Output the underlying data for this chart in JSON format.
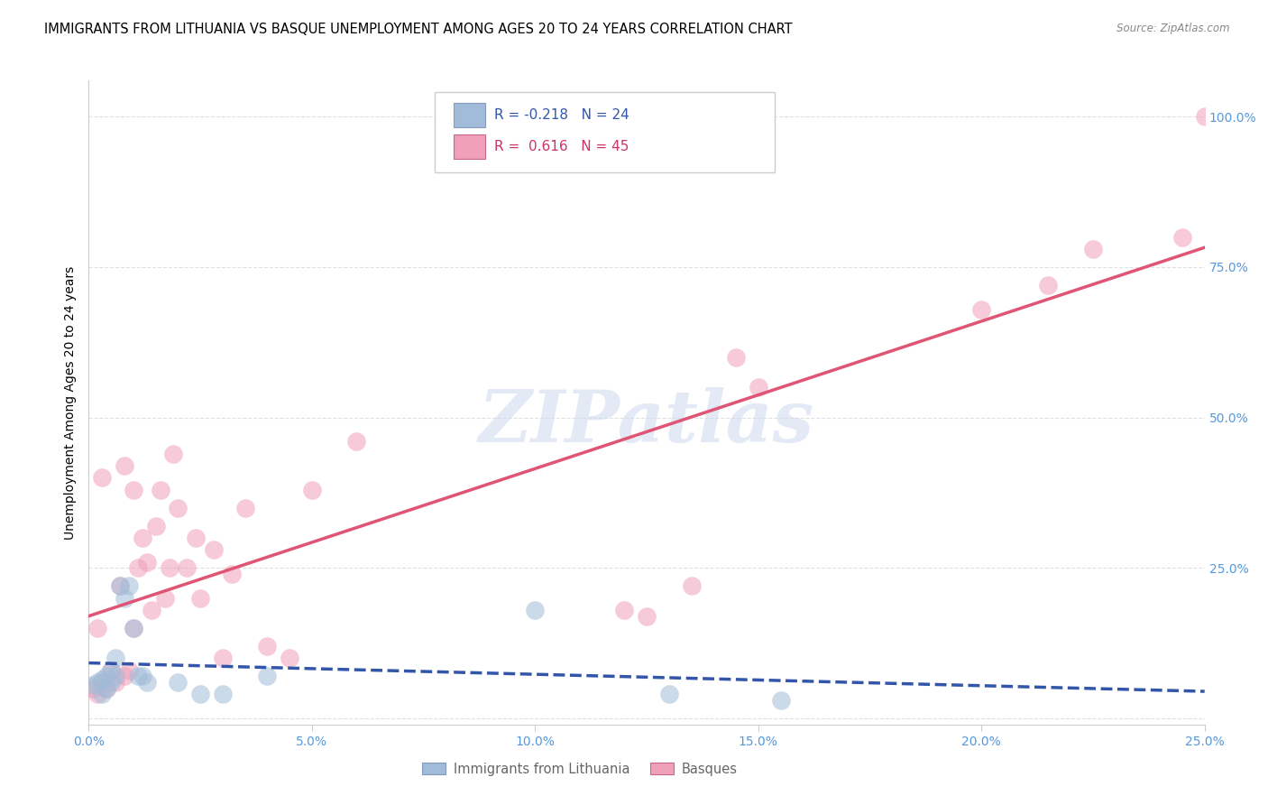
{
  "title": "IMMIGRANTS FROM LITHUANIA VS BASQUE UNEMPLOYMENT AMONG AGES 20 TO 24 YEARS CORRELATION CHART",
  "source": "Source: ZipAtlas.com",
  "ylabel": "Unemployment Among Ages 20 to 24 years",
  "xlim": [
    0.0,
    0.25
  ],
  "ylim": [
    -0.01,
    1.06
  ],
  "xticks": [
    0.0,
    0.05,
    0.1,
    0.15,
    0.2,
    0.25
  ],
  "yticks": [
    0.0,
    0.25,
    0.5,
    0.75,
    1.0
  ],
  "xtick_labels": [
    "0.0%",
    "5.0%",
    "10.0%",
    "15.0%",
    "20.0%",
    "25.0%"
  ],
  "ytick_labels": [
    "",
    "25.0%",
    "50.0%",
    "75.0%",
    "100.0%"
  ],
  "legend_R_lit": "-0.218",
  "legend_N_lit": "24",
  "legend_R_bas": "0.616",
  "legend_N_bas": "45",
  "lithuania_x": [
    0.001,
    0.002,
    0.003,
    0.003,
    0.004,
    0.004,
    0.005,
    0.005,
    0.006,
    0.006,
    0.007,
    0.008,
    0.009,
    0.01,
    0.011,
    0.012,
    0.013,
    0.02,
    0.025,
    0.03,
    0.04,
    0.1,
    0.13,
    0.155
  ],
  "lithuania_y": [
    0.055,
    0.06,
    0.065,
    0.04,
    0.07,
    0.05,
    0.06,
    0.08,
    0.07,
    0.1,
    0.22,
    0.2,
    0.22,
    0.15,
    0.07,
    0.07,
    0.06,
    0.06,
    0.04,
    0.04,
    0.07,
    0.18,
    0.04,
    0.03
  ],
  "basque_x": [
    0.001,
    0.002,
    0.002,
    0.003,
    0.003,
    0.004,
    0.005,
    0.006,
    0.007,
    0.008,
    0.008,
    0.009,
    0.01,
    0.01,
    0.011,
    0.012,
    0.013,
    0.014,
    0.015,
    0.016,
    0.017,
    0.018,
    0.019,
    0.02,
    0.022,
    0.024,
    0.025,
    0.028,
    0.03,
    0.032,
    0.035,
    0.04,
    0.045,
    0.05,
    0.06,
    0.12,
    0.125,
    0.135,
    0.145,
    0.15,
    0.2,
    0.215,
    0.225,
    0.245,
    0.25
  ],
  "basque_y": [
    0.05,
    0.04,
    0.15,
    0.06,
    0.4,
    0.05,
    0.08,
    0.06,
    0.22,
    0.07,
    0.42,
    0.08,
    0.15,
    0.38,
    0.25,
    0.3,
    0.26,
    0.18,
    0.32,
    0.38,
    0.2,
    0.25,
    0.44,
    0.35,
    0.25,
    0.3,
    0.2,
    0.28,
    0.1,
    0.24,
    0.35,
    0.12,
    0.1,
    0.38,
    0.46,
    0.18,
    0.17,
    0.22,
    0.6,
    0.55,
    0.68,
    0.72,
    0.78,
    0.8,
    1.0
  ],
  "scatter_color_lithuania": "#a0bcd8",
  "scatter_color_basque": "#f0a0b8",
  "scatter_alpha": 0.55,
  "scatter_size": 220,
  "line_color_lithuania": "#3355aa",
  "line_color_basque": "#e05575",
  "watermark": "ZIPatlas",
  "background_color": "#ffffff",
  "title_fontsize": 10.5,
  "axis_label_fontsize": 10,
  "tick_fontsize": 10,
  "tick_color": "#5599dd",
  "grid_color": "#e0e0e0"
}
